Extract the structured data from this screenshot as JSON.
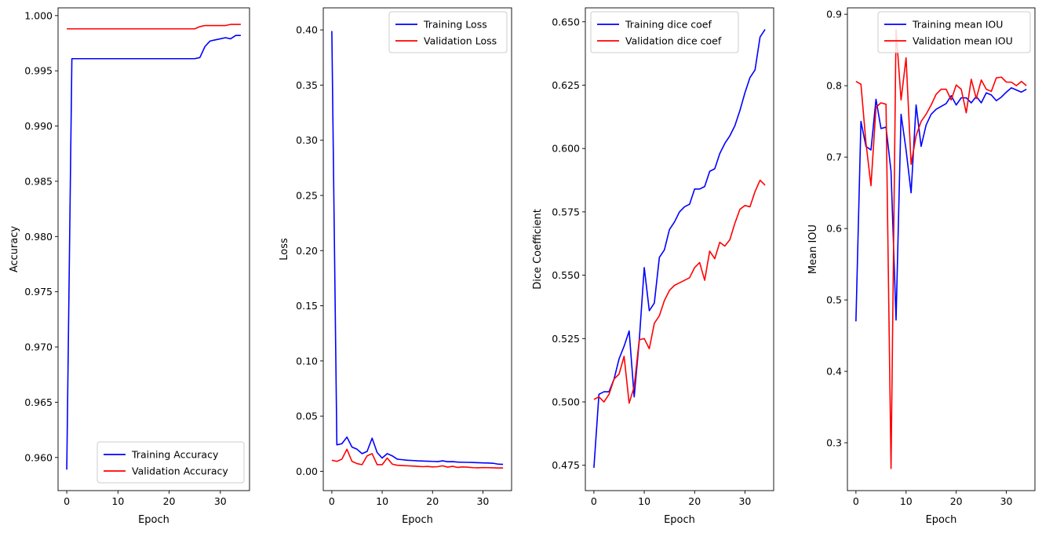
{
  "chart_data": [
    {
      "type": "line",
      "xlabel": "Epoch",
      "ylabel": "Accuracy",
      "xlim": [
        -1.7,
        35.7
      ],
      "ylim": [
        0.957,
        1.0007
      ],
      "xticks": [
        0,
        10,
        20,
        30
      ],
      "yticks": [
        0.96,
        0.965,
        0.97,
        0.975,
        0.98,
        0.985,
        0.99,
        0.995,
        1.0
      ],
      "ytick_labels": [
        "0.960",
        "0.965",
        "0.970",
        "0.975",
        "0.980",
        "0.985",
        "0.990",
        "0.995",
        "1.000"
      ],
      "legend": "lower-right",
      "series": [
        {
          "name": "Training Accuracy",
          "color": "#0000ff",
          "values": [
            0.9589,
            0.9961,
            0.9961,
            0.9961,
            0.9961,
            0.9961,
            0.9961,
            0.9961,
            0.9961,
            0.9961,
            0.9961,
            0.9961,
            0.9961,
            0.9961,
            0.9961,
            0.9961,
            0.9961,
            0.9961,
            0.9961,
            0.9961,
            0.9961,
            0.9961,
            0.9961,
            0.9961,
            0.9961,
            0.9961,
            0.9962,
            0.9972,
            0.9977,
            0.9978,
            0.9979,
            0.998,
            0.9979,
            0.9982,
            0.9982
          ]
        },
        {
          "name": "Validation Accuracy",
          "color": "#ff0000",
          "values": [
            0.9988,
            0.9988,
            0.9988,
            0.9988,
            0.9988,
            0.9988,
            0.9988,
            0.9988,
            0.9988,
            0.9988,
            0.9988,
            0.9988,
            0.9988,
            0.9988,
            0.9988,
            0.9988,
            0.9988,
            0.9988,
            0.9988,
            0.9988,
            0.9988,
            0.9988,
            0.9988,
            0.9988,
            0.9988,
            0.9988,
            0.999,
            0.9991,
            0.9991,
            0.9991,
            0.9991,
            0.9991,
            0.9992,
            0.9992,
            0.9992
          ]
        }
      ]
    },
    {
      "type": "line",
      "xlabel": "Epoch",
      "ylabel": "Loss",
      "xlim": [
        -1.7,
        35.7
      ],
      "ylim": [
        -0.0175,
        0.42
      ],
      "xticks": [
        0,
        10,
        20,
        30
      ],
      "yticks": [
        0.0,
        0.05,
        0.1,
        0.15,
        0.2,
        0.25,
        0.3,
        0.35,
        0.4
      ],
      "ytick_labels": [
        "0.00",
        "0.05",
        "0.10",
        "0.15",
        "0.20",
        "0.25",
        "0.30",
        "0.35",
        "0.40"
      ],
      "legend": "top-right",
      "series": [
        {
          "name": "Training Loss",
          "color": "#0000ff",
          "values": [
            0.399,
            0.024,
            0.025,
            0.031,
            0.022,
            0.02,
            0.016,
            0.018,
            0.03,
            0.017,
            0.012,
            0.016,
            0.014,
            0.011,
            0.0105,
            0.01,
            0.0098,
            0.0095,
            0.0093,
            0.0091,
            0.009,
            0.0088,
            0.0095,
            0.0087,
            0.0088,
            0.0083,
            0.0082,
            0.0081,
            0.008,
            0.0078,
            0.0076,
            0.0075,
            0.0073,
            0.0065,
            0.0063
          ]
        },
        {
          "name": "Validation Loss",
          "color": "#ff0000",
          "values": [
            0.01,
            0.009,
            0.011,
            0.02,
            0.009,
            0.007,
            0.006,
            0.014,
            0.016,
            0.006,
            0.006,
            0.012,
            0.0065,
            0.0055,
            0.0052,
            0.005,
            0.0048,
            0.0045,
            0.0042,
            0.0044,
            0.004,
            0.0042,
            0.005,
            0.0038,
            0.0045,
            0.0035,
            0.004,
            0.0037,
            0.0033,
            0.0032,
            0.0034,
            0.0033,
            0.0032,
            0.003,
            0.0031
          ]
        }
      ]
    },
    {
      "type": "line",
      "xlabel": "Epoch",
      "ylabel": "Dice Coefficient",
      "xlim": [
        -1.7,
        35.7
      ],
      "ylim": [
        0.465,
        0.6555
      ],
      "xticks": [
        0,
        10,
        20,
        30
      ],
      "yticks": [
        0.475,
        0.5,
        0.525,
        0.55,
        0.575,
        0.6,
        0.625,
        0.65
      ],
      "ytick_labels": [
        "0.475",
        "0.500",
        "0.525",
        "0.550",
        "0.575",
        "0.600",
        "0.625",
        "0.650"
      ],
      "legend": "top-left",
      "series": [
        {
          "name": "Training dice coef",
          "color": "#0000ff",
          "values": [
            0.474,
            0.503,
            0.504,
            0.504,
            0.509,
            0.517,
            0.522,
            0.528,
            0.502,
            0.524,
            0.553,
            0.536,
            0.539,
            0.557,
            0.56,
            0.568,
            0.571,
            0.575,
            0.577,
            0.578,
            0.584,
            0.584,
            0.585,
            0.591,
            0.592,
            0.598,
            0.602,
            0.605,
            0.609,
            0.615,
            0.622,
            0.628,
            0.631,
            0.644,
            0.647
          ]
        },
        {
          "name": "Validation dice coef",
          "color": "#ff0000",
          "values": [
            0.501,
            0.502,
            0.5,
            0.503,
            0.509,
            0.511,
            0.518,
            0.4995,
            0.506,
            0.5245,
            0.525,
            0.521,
            0.531,
            0.534,
            0.54,
            0.544,
            0.546,
            0.547,
            0.548,
            0.549,
            0.553,
            0.555,
            0.548,
            0.5595,
            0.5565,
            0.563,
            0.5615,
            0.564,
            0.5705,
            0.576,
            0.5775,
            0.577,
            0.583,
            0.5875,
            0.5855
          ]
        }
      ]
    },
    {
      "type": "line",
      "xlabel": "Epoch",
      "ylabel": "Mean IOU",
      "xlim": [
        -1.7,
        35.7
      ],
      "ylim": [
        0.233,
        0.909
      ],
      "xticks": [
        0,
        10,
        20,
        30
      ],
      "yticks": [
        0.3,
        0.4,
        0.5,
        0.6,
        0.7,
        0.8,
        0.9
      ],
      "ytick_labels": [
        "0.3",
        "0.4",
        "0.5",
        "0.6",
        "0.7",
        "0.8",
        "0.9"
      ],
      "legend": "top-right",
      "series": [
        {
          "name": "Training mean IOU",
          "color": "#0000ff",
          "values": [
            0.47,
            0.75,
            0.715,
            0.71,
            0.781,
            0.74,
            0.742,
            0.68,
            0.472,
            0.76,
            0.71,
            0.65,
            0.773,
            0.715,
            0.745,
            0.76,
            0.767,
            0.771,
            0.775,
            0.786,
            0.773,
            0.783,
            0.783,
            0.776,
            0.785,
            0.776,
            0.79,
            0.787,
            0.779,
            0.784,
            0.791,
            0.797,
            0.794,
            0.791,
            0.795
          ]
        },
        {
          "name": "Validation mean IOU",
          "color": "#ff0000",
          "values": [
            0.806,
            0.802,
            0.72,
            0.66,
            0.77,
            0.776,
            0.774,
            0.264,
            0.879,
            0.78,
            0.839,
            0.69,
            0.73,
            0.75,
            0.76,
            0.773,
            0.788,
            0.795,
            0.795,
            0.78,
            0.801,
            0.795,
            0.762,
            0.809,
            0.782,
            0.808,
            0.795,
            0.792,
            0.811,
            0.812,
            0.805,
            0.805,
            0.8,
            0.806,
            0.8
          ]
        }
      ]
    }
  ]
}
